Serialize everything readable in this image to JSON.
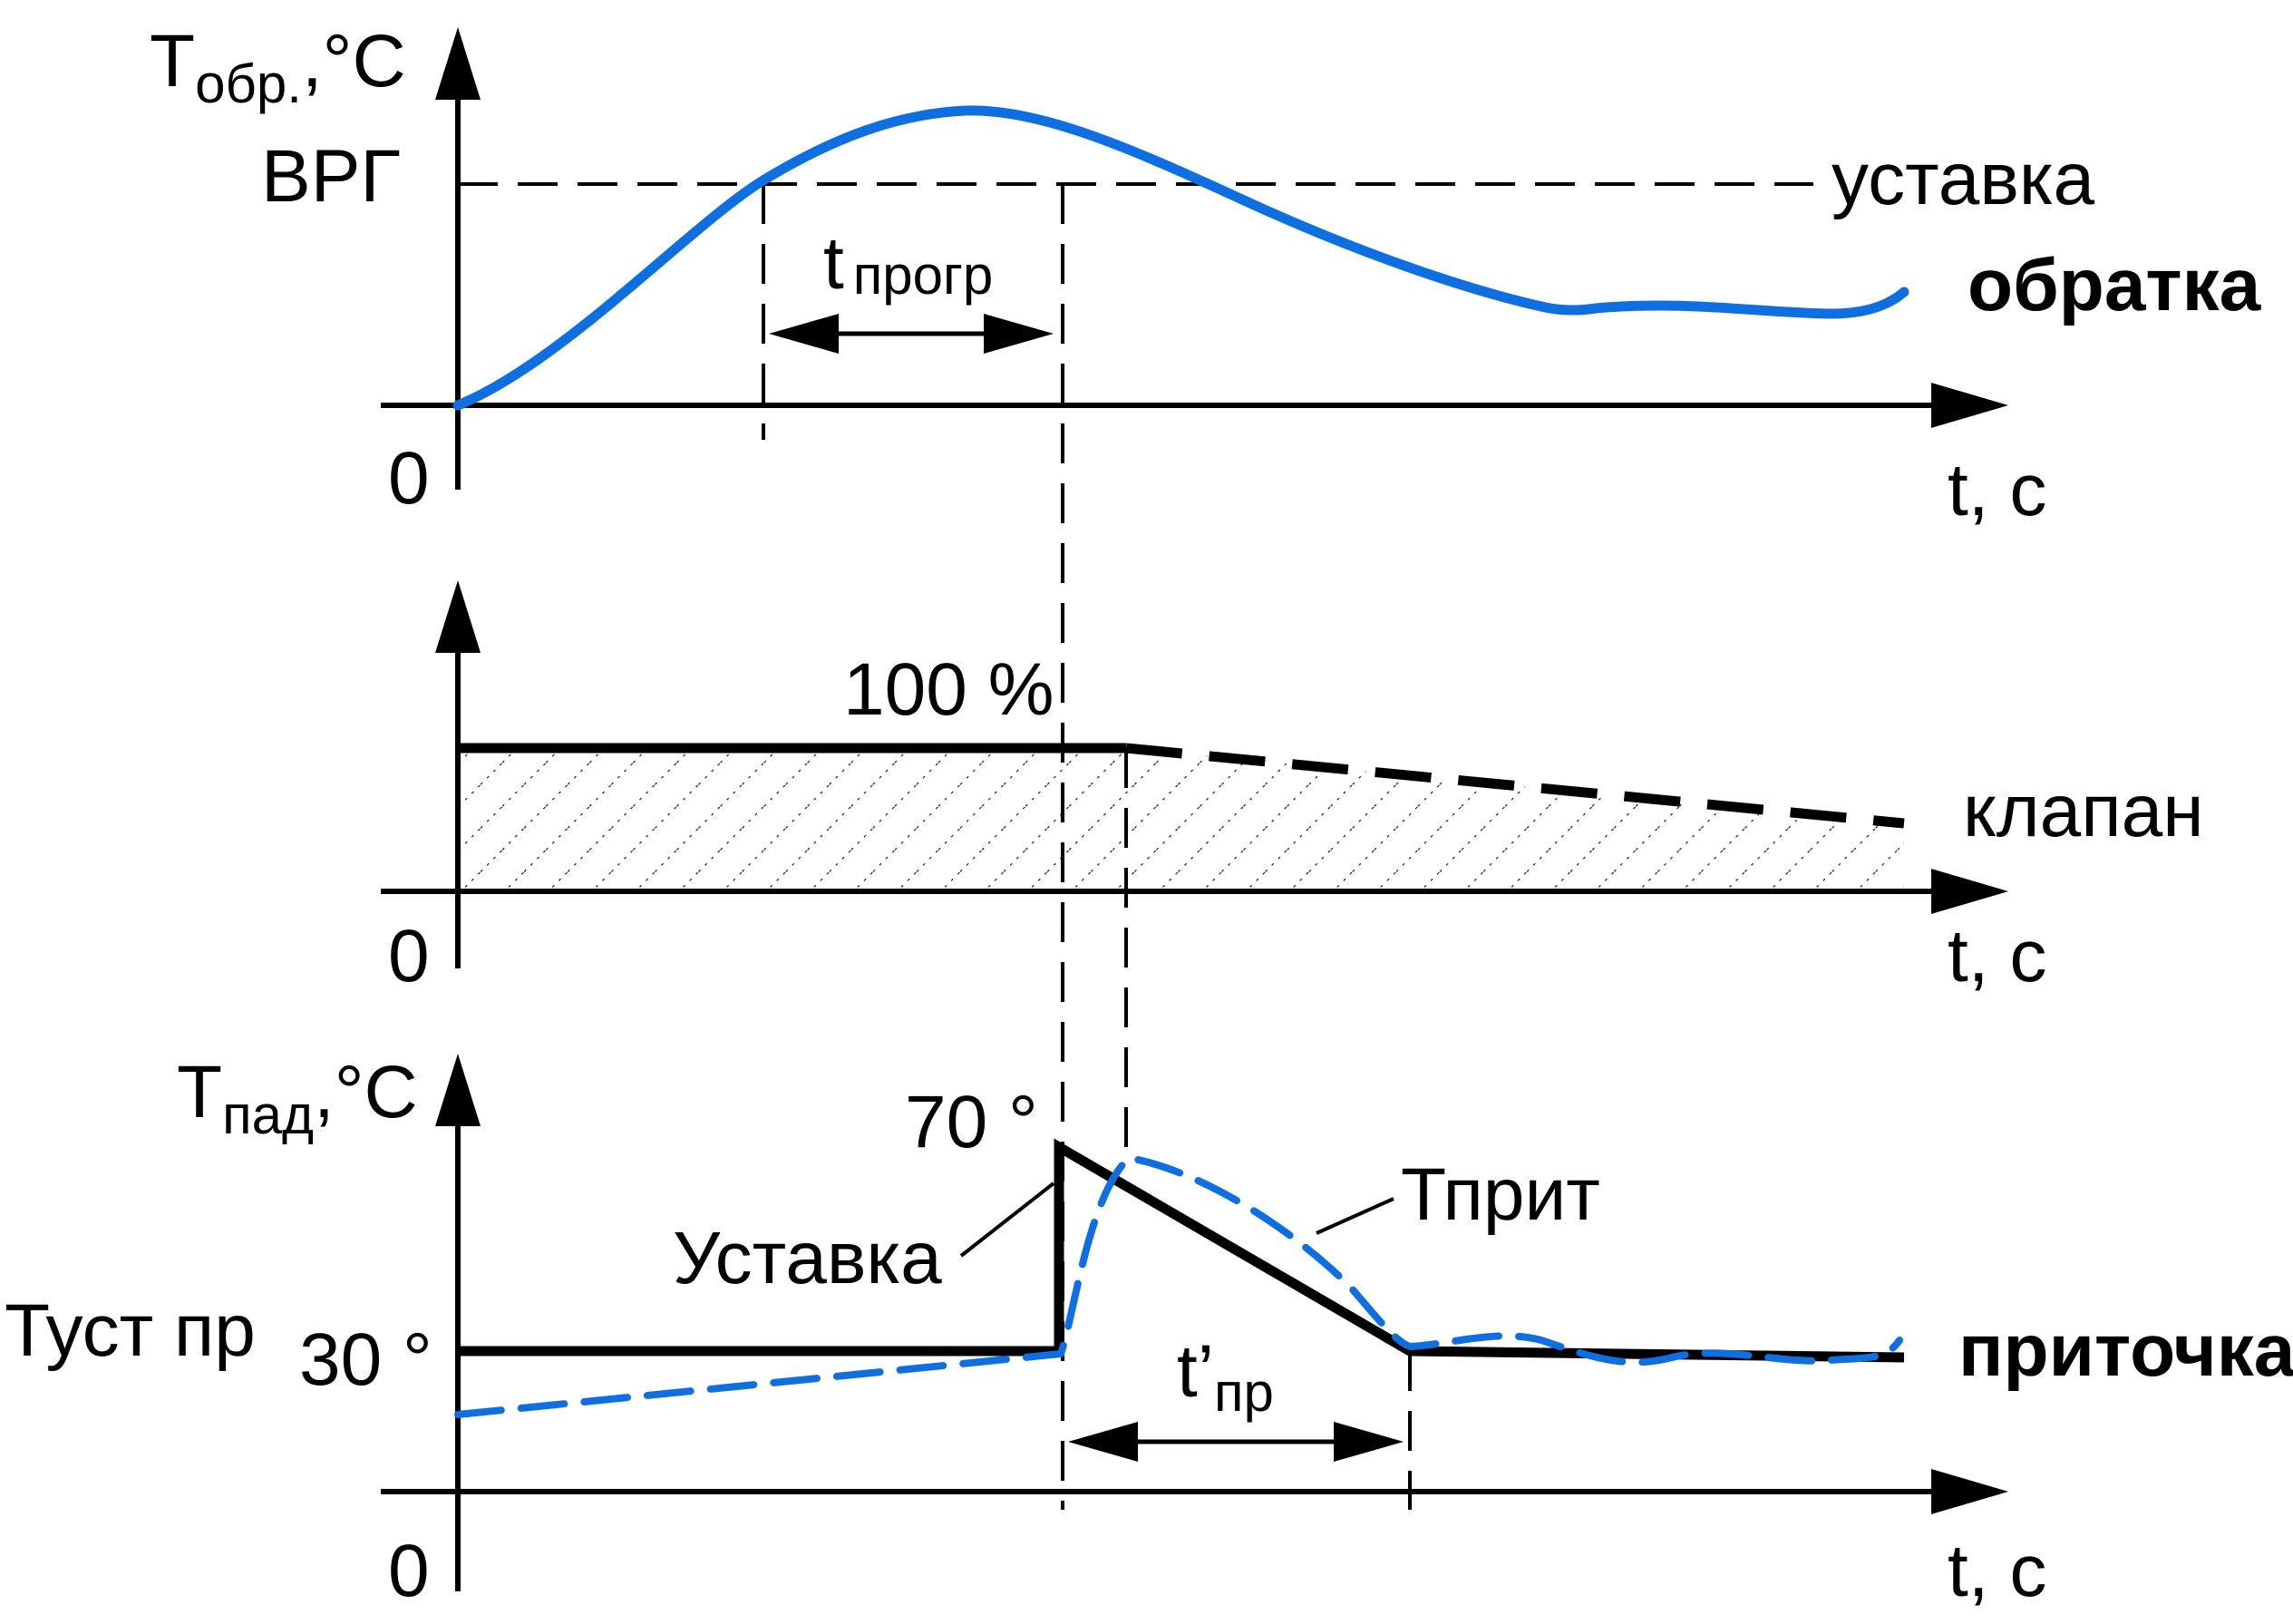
{
  "top_panel": {
    "y_axis_main": "T",
    "y_axis_sub": "обр.",
    "y_axis_unit": ",°C",
    "level_label": "ВРГ",
    "zero_label": "0",
    "setpoint_label": "уставка",
    "curve_label": "обратка",
    "x_axis_label": "t, c",
    "interval_main": "t",
    "interval_sub": "прогр"
  },
  "middle_panel": {
    "level_label": "100 %",
    "zero_label": "0",
    "valve_label": "клапан",
    "x_axis_label": "t, c"
  },
  "bottom_panel": {
    "y_axis_main": "T",
    "y_axis_sub": "пад",
    "y_axis_unit": ",°C",
    "peak_label": "70 °",
    "base_label": "30 °",
    "setpoint_side_label": "Туст пр",
    "setpoint_curve_label": "Уставка",
    "supply_temp_label": "Тприт",
    "curve_label": "приточка",
    "interval_main": "t’",
    "interval_sub": "пр",
    "zero_label": "0",
    "x_axis_label": "t, c"
  },
  "colors": {
    "curve_blue": "#0f6fe0",
    "ink": "#000000"
  }
}
